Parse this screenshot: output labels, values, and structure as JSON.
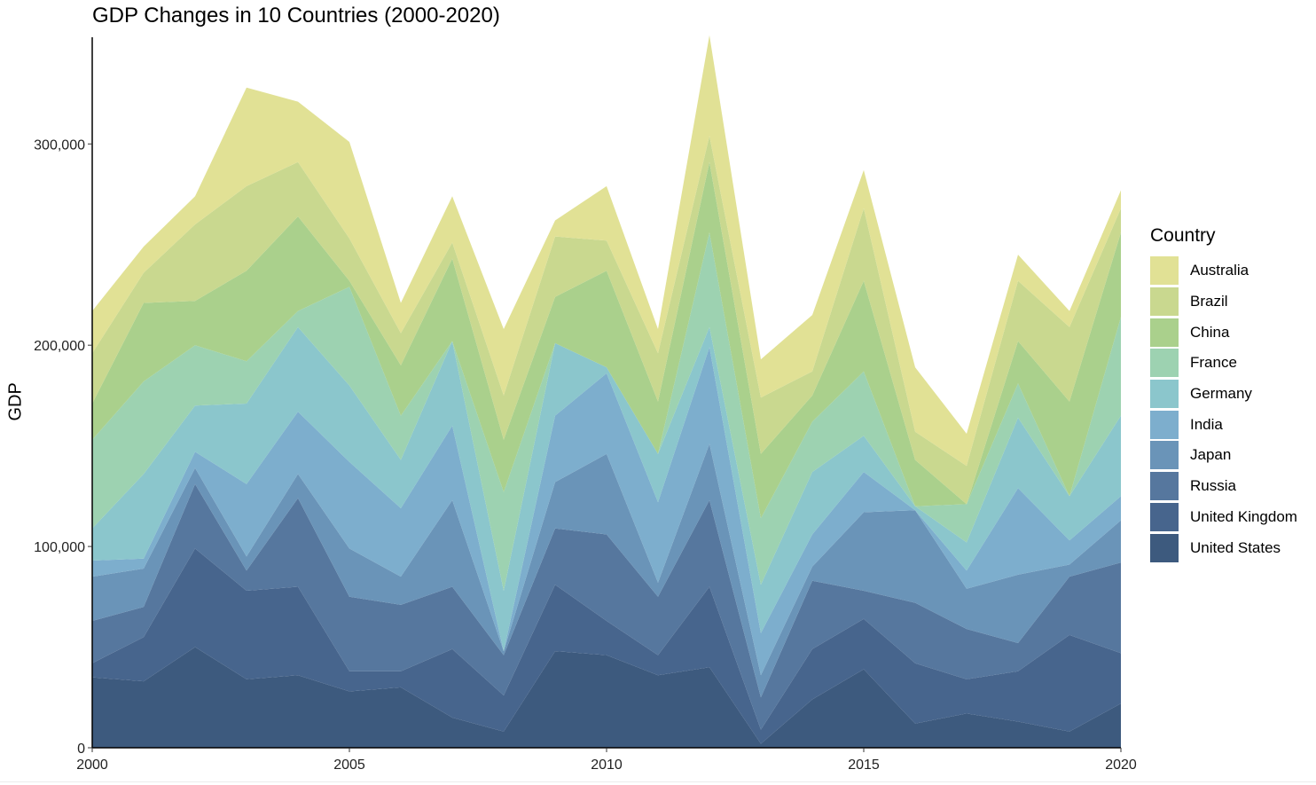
{
  "chart_data": {
    "type": "area",
    "stacked": true,
    "title": "GDP Changes in 10 Countries (2000-2020)",
    "xlabel": "",
    "ylabel": "GDP",
    "x": [
      2000,
      2001,
      2002,
      2003,
      2004,
      2005,
      2006,
      2007,
      2008,
      2009,
      2010,
      2011,
      2012,
      2013,
      2014,
      2015,
      2016,
      2017,
      2018,
      2019,
      2020
    ],
    "xticks": [
      2000,
      2005,
      2010,
      2015,
      2020
    ],
    "xtick_labels": [
      "2000",
      "2005",
      "2010",
      "2015",
      "2020"
    ],
    "yticks": [
      0,
      100000,
      200000,
      300000
    ],
    "ytick_labels": [
      "0",
      "100,000",
      "200,000",
      "300,000"
    ],
    "xlim": [
      2000,
      2020
    ],
    "ylim": [
      0,
      353000
    ],
    "grid": false,
    "legend_title": "Country",
    "legend_position": "right",
    "series": [
      {
        "name": "United States",
        "color": "#3d5a7e",
        "values": [
          35000,
          33000,
          50000,
          34000,
          36000,
          28000,
          30000,
          15000,
          8000,
          48000,
          46000,
          36000,
          40000,
          2000,
          24000,
          39000,
          12000,
          17000,
          13000,
          8000,
          22000
        ]
      },
      {
        "name": "United Kingdom",
        "color": "#47658d",
        "values": [
          7000,
          22000,
          49000,
          44000,
          44000,
          10000,
          8000,
          34000,
          18000,
          33000,
          17000,
          10000,
          40000,
          7000,
          25000,
          25000,
          30000,
          17000,
          25000,
          48000,
          25000
        ]
      },
      {
        "name": "Russia",
        "color": "#56779e",
        "values": [
          21000,
          15000,
          32000,
          10000,
          44000,
          37000,
          33000,
          31000,
          20000,
          28000,
          43000,
          29000,
          43000,
          16000,
          34000,
          14000,
          30000,
          25000,
          14000,
          29000,
          45000
        ]
      },
      {
        "name": "Japan",
        "color": "#6a94b8",
        "values": [
          22000,
          19000,
          8000,
          7000,
          12000,
          24000,
          14000,
          43000,
          2000,
          23000,
          40000,
          7000,
          28000,
          11000,
          7000,
          39000,
          46000,
          20000,
          34000,
          6000,
          21000
        ]
      },
      {
        "name": "India",
        "color": "#7daecd",
        "values": [
          8000,
          5000,
          8000,
          36000,
          31000,
          43000,
          34000,
          37000,
          0,
          33000,
          40000,
          40000,
          48000,
          21000,
          16000,
          20000,
          0,
          9000,
          43000,
          12000,
          12000
        ]
      },
      {
        "name": "Germany",
        "color": "#8bc6cc",
        "values": [
          16000,
          42000,
          23000,
          40000,
          42000,
          38000,
          24000,
          42000,
          30000,
          36000,
          3000,
          24000,
          10000,
          24000,
          31000,
          18000,
          2000,
          14000,
          35000,
          22000,
          40000
        ]
      },
      {
        "name": "France",
        "color": "#9dd2b1",
        "values": [
          44000,
          46000,
          30000,
          21000,
          8000,
          49000,
          22000,
          0,
          49000,
          0,
          0,
          0,
          47000,
          33000,
          25000,
          32000,
          0,
          19000,
          17000,
          0,
          49000
        ]
      },
      {
        "name": "China",
        "color": "#aad08c",
        "values": [
          18000,
          39000,
          22000,
          45000,
          47000,
          3000,
          25000,
          41000,
          26000,
          23000,
          48000,
          26000,
          35000,
          32000,
          13000,
          45000,
          23000,
          0,
          21000,
          47000,
          42000
        ]
      },
      {
        "name": "Brazil",
        "color": "#c9d88f",
        "values": [
          25000,
          15000,
          38000,
          42000,
          27000,
          21000,
          16000,
          8000,
          22000,
          30000,
          15000,
          24000,
          13000,
          28000,
          12000,
          36000,
          14000,
          19000,
          30000,
          37000,
          12000
        ]
      },
      {
        "name": "Australia",
        "color": "#e1e195",
        "values": [
          21000,
          13000,
          14000,
          49000,
          30000,
          48000,
          15000,
          23000,
          33000,
          8000,
          27000,
          12000,
          50000,
          19000,
          28000,
          19000,
          32000,
          16000,
          13000,
          8000,
          9000
        ]
      }
    ]
  }
}
